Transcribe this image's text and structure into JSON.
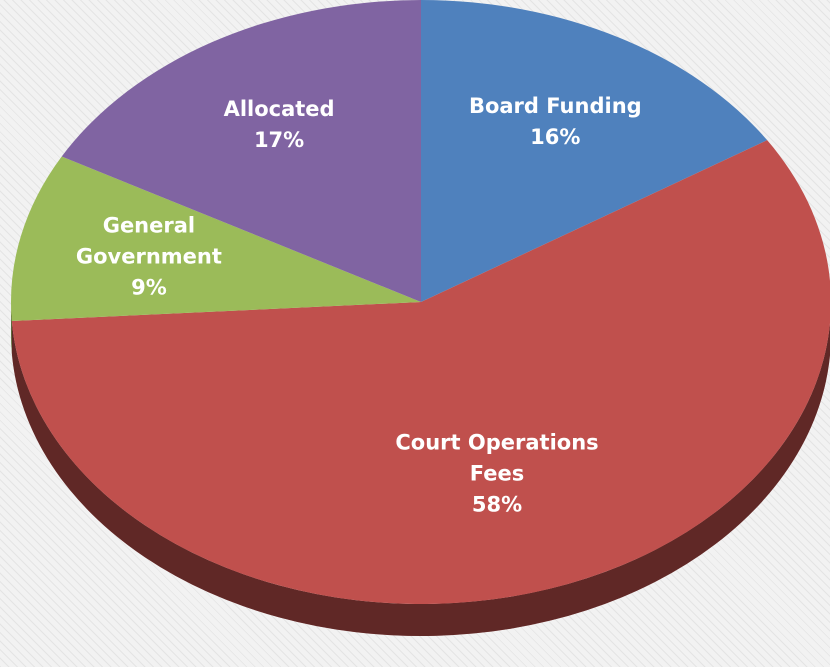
{
  "chart_data": {
    "type": "pie",
    "categories": [
      "Board Funding",
      "Court Operations Fees",
      "General Government",
      "Allocated"
    ],
    "values": [
      16,
      58,
      9,
      17
    ],
    "value_labels": [
      "16%",
      "58%",
      "9%",
      "17%"
    ],
    "colors": [
      "#4f81bd",
      "#c0504d",
      "#9bbb59",
      "#8064a2"
    ]
  }
}
